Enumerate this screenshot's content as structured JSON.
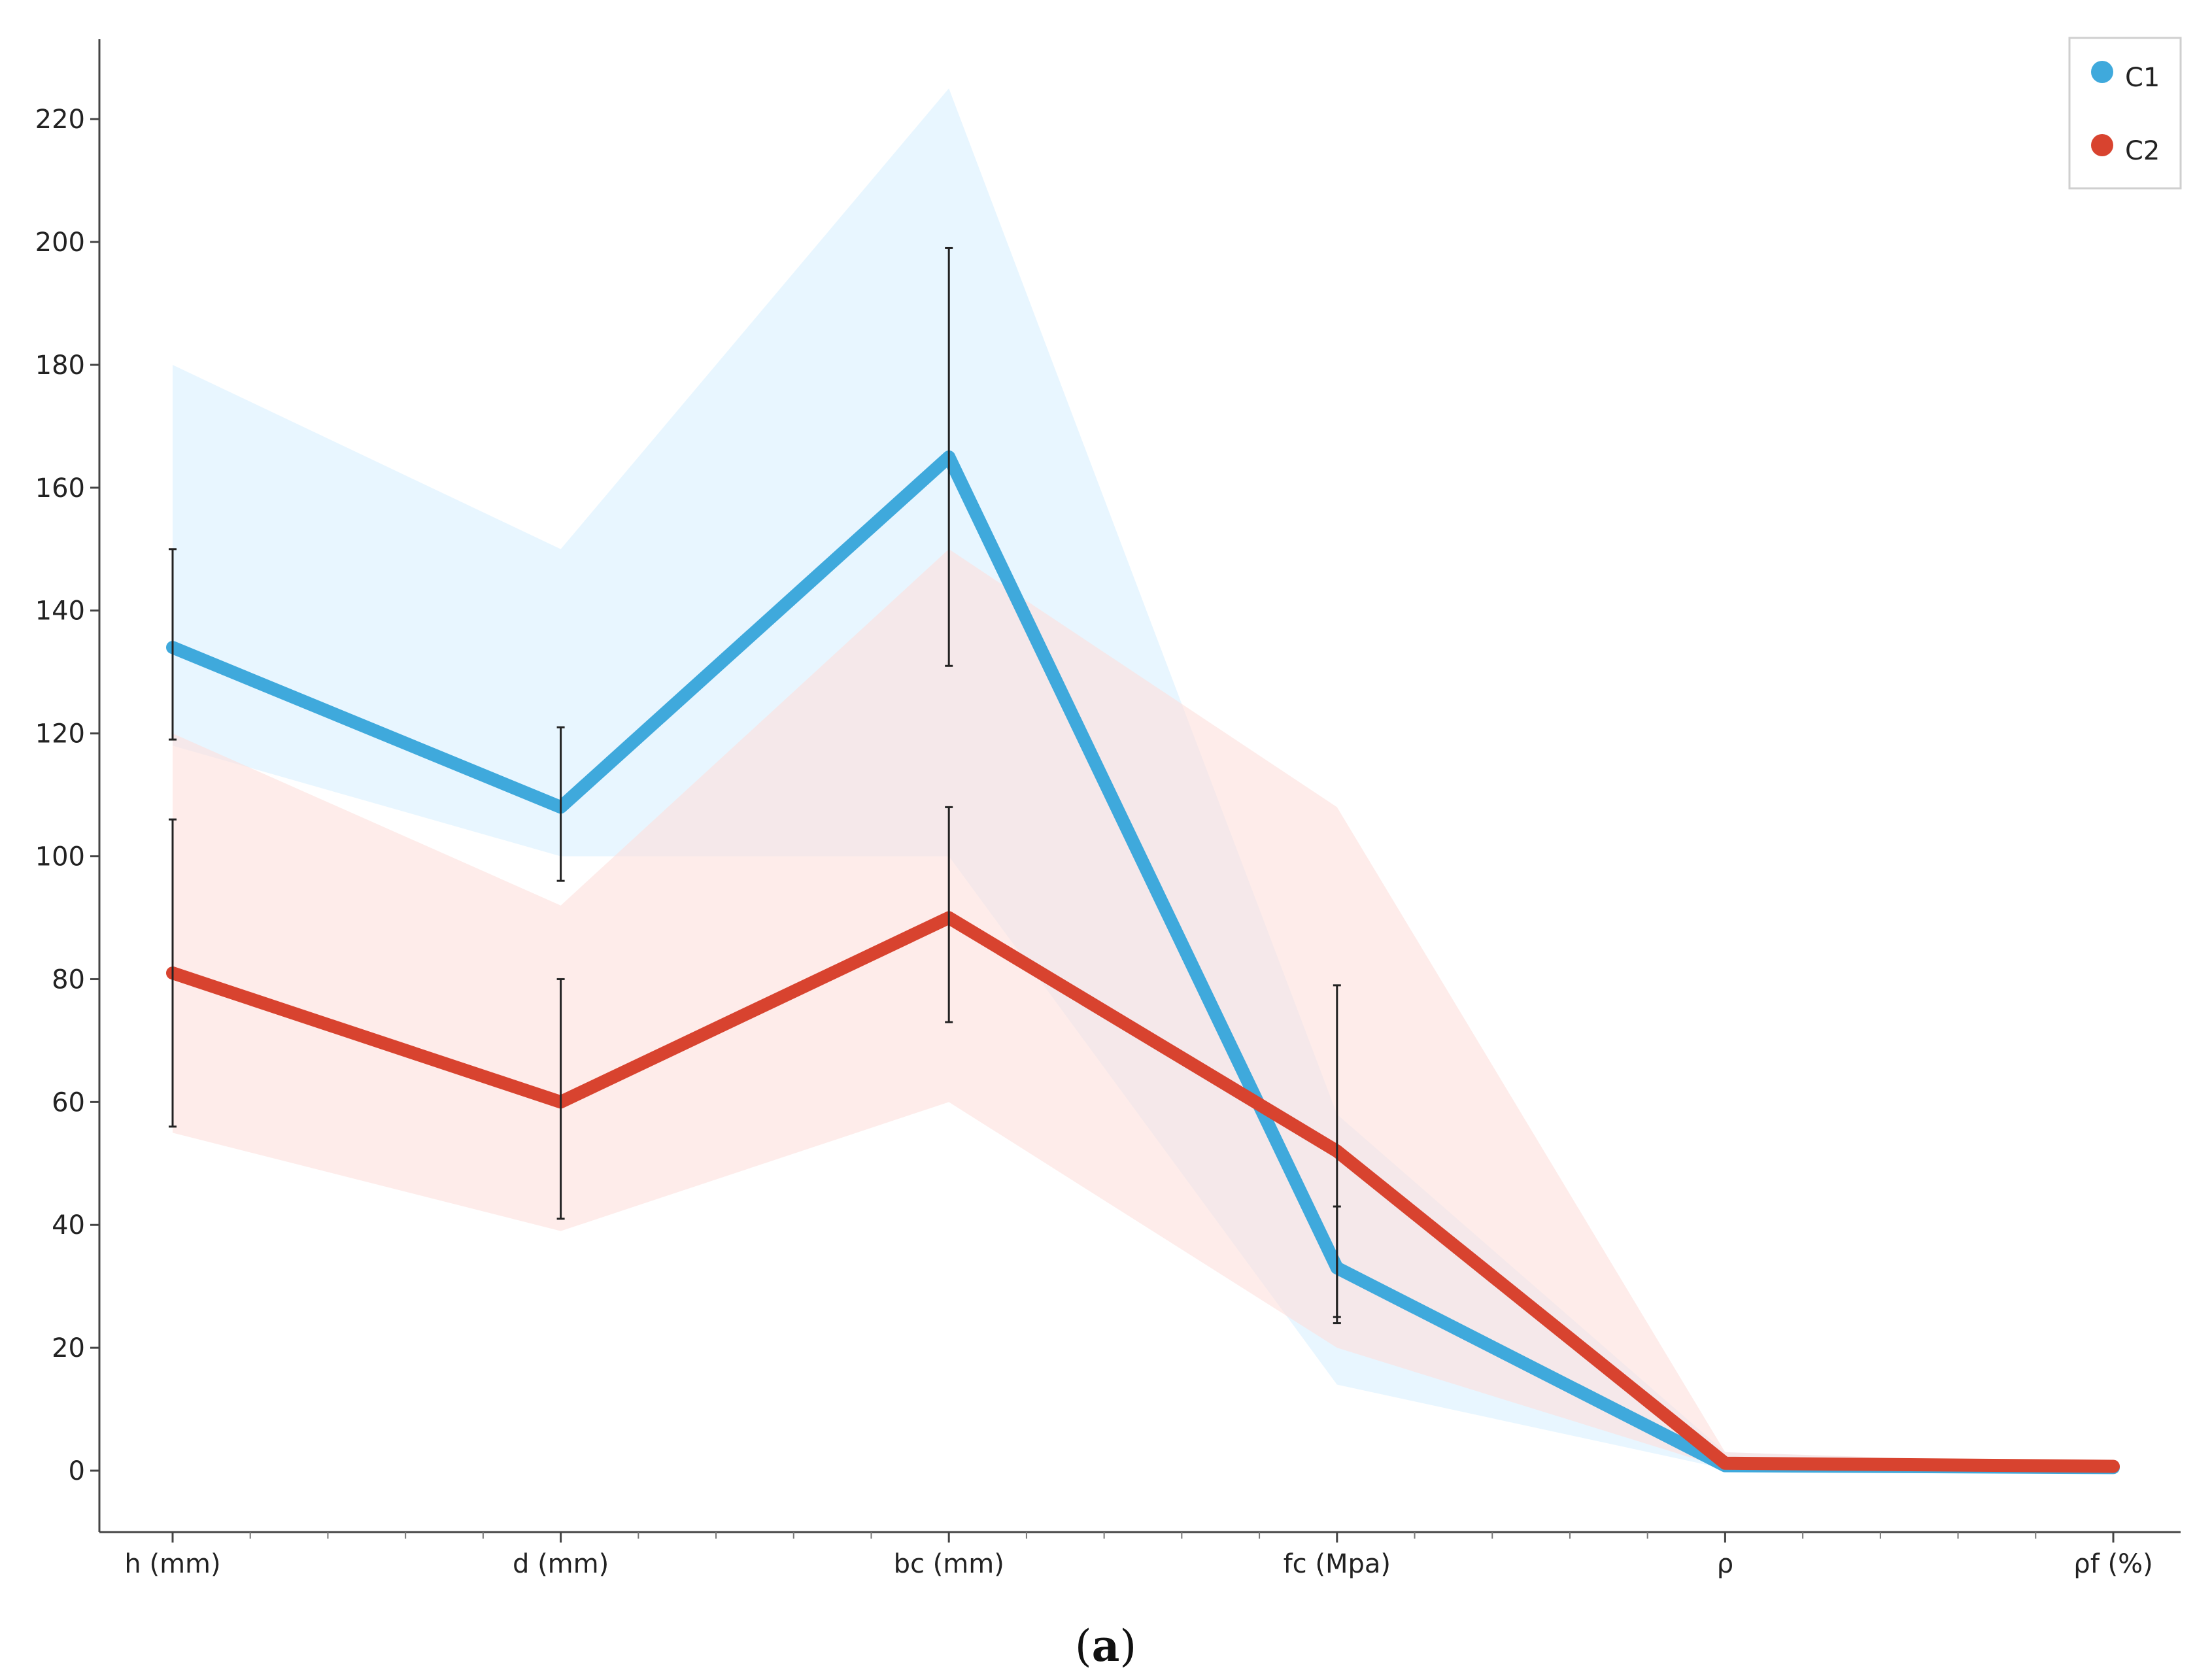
{
  "chart_data": {
    "type": "line",
    "title": "",
    "xlabel": "",
    "ylabel": "",
    "categories": [
      "h (mm)",
      "d (mm)",
      "bc (mm)",
      "fc (Mpa)",
      "ρ",
      "ρf (%)"
    ],
    "ylim": [
      -10,
      233
    ],
    "yticks": [
      0,
      20,
      40,
      60,
      80,
      100,
      120,
      140,
      160,
      180,
      200,
      220
    ],
    "grid": false,
    "legend_position": "top-right",
    "series": [
      {
        "name": "C1",
        "color": "#3fa9dc",
        "band_color": "#d6efff",
        "values": [
          134,
          108,
          165,
          33,
          0.8,
          0.5
        ],
        "band_upper": [
          180,
          150,
          225,
          58,
          3,
          0.8
        ],
        "band_lower": [
          118,
          100,
          100,
          14,
          0.3,
          0.3
        ],
        "error_upper": [
          150,
          121,
          199,
          43,
          null,
          null
        ],
        "error_lower": [
          119,
          96,
          131,
          24,
          null,
          null
        ]
      },
      {
        "name": "C2",
        "color": "#d8432f",
        "band_color": "#fde0dc",
        "values": [
          81,
          60,
          90,
          52,
          1.2,
          0.7
        ],
        "band_upper": [
          120,
          92,
          150,
          108,
          3,
          0.9
        ],
        "band_lower": [
          55,
          39,
          60,
          20,
          0.4,
          0.4
        ],
        "error_upper": [
          106,
          80,
          108,
          79,
          null,
          null
        ],
        "error_lower": [
          56,
          41,
          73,
          25,
          null,
          null
        ]
      }
    ]
  },
  "caption": {
    "open": "(",
    "letter": "a",
    "close": ")"
  }
}
